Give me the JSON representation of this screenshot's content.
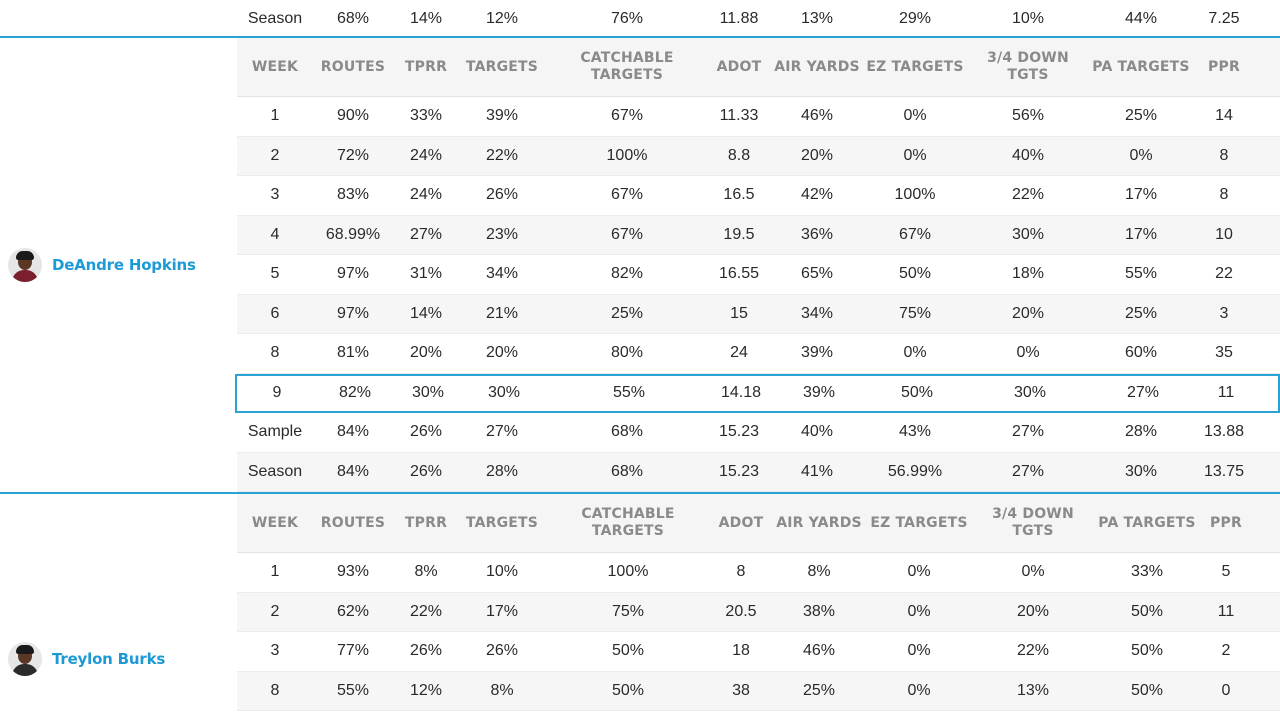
{
  "top_partial": {
    "label": "Season",
    "values": [
      "68%",
      "14%",
      "12%",
      "76%",
      "11.88",
      "13%",
      "29%",
      "10%",
      "44%",
      "7.25"
    ]
  },
  "players": [
    {
      "name": "DeAndre Hopkins",
      "avatar_icon": "player-headshot-icon",
      "headers": [
        "WEEK",
        "ROUTES",
        "TPRR",
        "TARGETS",
        "CATCHABLE TARGETS",
        "ADOT",
        "AIR YARDS",
        "EZ TARGETS",
        "3/4 DOWN TGTS",
        "PA TARGETS",
        "PPR"
      ],
      "rows": [
        [
          "1",
          "90%",
          "33%",
          "39%",
          "67%",
          "11.33",
          "46%",
          "0%",
          "56%",
          "25%",
          "14"
        ],
        [
          "2",
          "72%",
          "24%",
          "22%",
          "100%",
          "8.8",
          "20%",
          "0%",
          "40%",
          "0%",
          "8"
        ],
        [
          "3",
          "83%",
          "24%",
          "26%",
          "67%",
          "16.5",
          "42%",
          "100%",
          "22%",
          "17%",
          "8"
        ],
        [
          "4",
          "68.99%",
          "27%",
          "23%",
          "67%",
          "19.5",
          "36%",
          "67%",
          "30%",
          "17%",
          "10"
        ],
        [
          "5",
          "97%",
          "31%",
          "34%",
          "82%",
          "16.55",
          "65%",
          "50%",
          "18%",
          "55%",
          "22"
        ],
        [
          "6",
          "97%",
          "14%",
          "21%",
          "25%",
          "15",
          "34%",
          "75%",
          "20%",
          "25%",
          "3"
        ],
        [
          "8",
          "81%",
          "20%",
          "20%",
          "80%",
          "24",
          "39%",
          "0%",
          "0%",
          "60%",
          "35"
        ],
        [
          "9",
          "82%",
          "30%",
          "30%",
          "55%",
          "14.18",
          "39%",
          "50%",
          "30%",
          "27%",
          "11"
        ],
        [
          "Sample",
          "84%",
          "26%",
          "27%",
          "68%",
          "15.23",
          "40%",
          "43%",
          "27%",
          "28%",
          "13.88"
        ],
        [
          "Season",
          "84%",
          "26%",
          "28%",
          "68%",
          "15.23",
          "41%",
          "56.99%",
          "27%",
          "30%",
          "13.75"
        ]
      ],
      "highlighted_week": "9"
    },
    {
      "name": "Treylon Burks",
      "avatar_icon": "player-headshot-icon",
      "headers": [
        "WEEK",
        "ROUTES",
        "TPRR",
        "TARGETS",
        "CATCHABLE TARGETS",
        "ADOT",
        "AIR YARDS",
        "EZ TARGETS",
        "3/4 DOWN TGTS",
        "PA TARGETS",
        "PPR"
      ],
      "rows": [
        [
          "1",
          "93%",
          "8%",
          "10%",
          "100%",
          "8",
          "8%",
          "0%",
          "0%",
          "33%",
          "5"
        ],
        [
          "2",
          "62%",
          "22%",
          "17%",
          "75%",
          "20.5",
          "38%",
          "0%",
          "20%",
          "50%",
          "11"
        ],
        [
          "3",
          "77%",
          "26%",
          "26%",
          "50%",
          "18",
          "46%",
          "0%",
          "22%",
          "50%",
          "2"
        ],
        [
          "8",
          "55%",
          "12%",
          "8%",
          "50%",
          "38",
          "25%",
          "0%",
          "13%",
          "50%",
          "0"
        ]
      ]
    }
  ],
  "colors": {
    "accent": "#2aa3d4",
    "player_name": "#1d9ad6",
    "header_text": "#8a8a8a",
    "zebra": "#f6f6f6"
  }
}
